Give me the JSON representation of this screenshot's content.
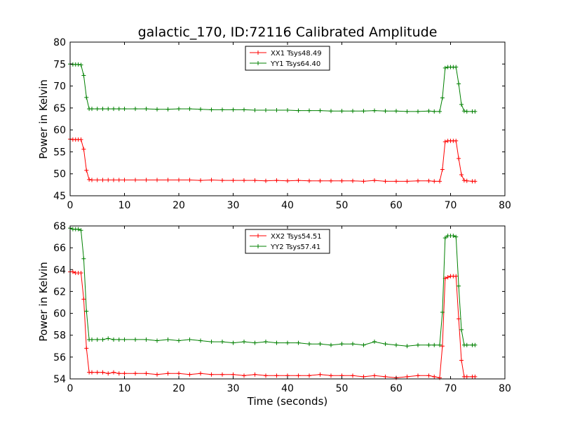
{
  "chart_data": [
    {
      "type": "line",
      "title": "galactic_170, ID:72116 Calibrated Amplitude",
      "xlabel": "",
      "ylabel": "Power in Kelvin",
      "xlim": [
        0,
        80
      ],
      "ylim": [
        45,
        80
      ],
      "xticks": [
        0,
        10,
        20,
        30,
        40,
        50,
        60,
        70,
        80
      ],
      "yticks": [
        45,
        50,
        55,
        60,
        65,
        70,
        75,
        80
      ],
      "legend_position": "top-center",
      "series": [
        {
          "name": "XX1 Tsys48.49",
          "color": "#ff0000",
          "x": [
            0,
            0.5,
            1,
            1.5,
            2,
            2.5,
            3,
            3.5,
            4,
            5,
            6,
            7,
            8,
            9,
            10,
            12,
            14,
            16,
            18,
            20,
            22,
            24,
            26,
            28,
            30,
            32,
            34,
            36,
            38,
            40,
            42,
            44,
            46,
            48,
            50,
            52,
            54,
            56,
            58,
            60,
            62,
            64,
            66,
            67,
            68,
            68.5,
            69,
            69.5,
            70,
            70.5,
            71,
            71.5,
            72,
            72.5,
            73,
            74,
            74.5
          ],
          "y": [
            57.9,
            57.8,
            57.8,
            57.8,
            57.8,
            55.6,
            50.8,
            48.7,
            48.6,
            48.6,
            48.6,
            48.6,
            48.6,
            48.6,
            48.6,
            48.6,
            48.6,
            48.6,
            48.6,
            48.6,
            48.6,
            48.5,
            48.6,
            48.5,
            48.5,
            48.5,
            48.5,
            48.4,
            48.5,
            48.4,
            48.5,
            48.4,
            48.4,
            48.4,
            48.4,
            48.4,
            48.3,
            48.5,
            48.3,
            48.3,
            48.3,
            48.4,
            48.4,
            48.3,
            48.3,
            51.0,
            57.3,
            57.5,
            57.5,
            57.5,
            57.5,
            53.5,
            49.8,
            48.5,
            48.4,
            48.3,
            48.3
          ]
        },
        {
          "name": "YY1 Tsys64.40",
          "color": "#008000",
          "x": [
            0,
            0.5,
            1,
            1.5,
            2,
            2.5,
            3,
            3.5,
            4,
            5,
            6,
            7,
            8,
            9,
            10,
            12,
            14,
            16,
            18,
            20,
            22,
            24,
            26,
            28,
            30,
            32,
            34,
            36,
            38,
            40,
            42,
            44,
            46,
            48,
            50,
            52,
            54,
            56,
            58,
            60,
            62,
            64,
            66,
            67,
            68,
            68.5,
            69,
            69.5,
            70,
            70.5,
            71,
            71.5,
            72,
            72.5,
            73,
            74,
            74.5
          ],
          "y": [
            75.0,
            74.9,
            74.9,
            74.9,
            74.8,
            72.4,
            67.4,
            64.8,
            64.8,
            64.8,
            64.8,
            64.8,
            64.8,
            64.8,
            64.8,
            64.8,
            64.8,
            64.7,
            64.7,
            64.8,
            64.8,
            64.7,
            64.6,
            64.6,
            64.6,
            64.6,
            64.5,
            64.5,
            64.5,
            64.5,
            64.4,
            64.4,
            64.4,
            64.3,
            64.3,
            64.3,
            64.3,
            64.4,
            64.3,
            64.3,
            64.2,
            64.2,
            64.3,
            64.2,
            64.2,
            67.3,
            74.1,
            74.3,
            74.3,
            74.3,
            74.3,
            70.5,
            65.8,
            64.3,
            64.2,
            64.2,
            64.2
          ]
        }
      ]
    },
    {
      "type": "line",
      "title": "",
      "xlabel": "Time (seconds)",
      "ylabel": "Power in Kelvin",
      "xlim": [
        0,
        80
      ],
      "ylim": [
        54,
        68
      ],
      "xticks": [
        0,
        10,
        20,
        30,
        40,
        50,
        60,
        70,
        80
      ],
      "yticks": [
        54,
        56,
        58,
        60,
        62,
        64,
        66,
        68
      ],
      "legend_position": "top-center",
      "series": [
        {
          "name": "XX2 Tsys54.51",
          "color": "#ff0000",
          "x": [
            0,
            0.5,
            1,
            1.5,
            2,
            2.5,
            3,
            3.5,
            4,
            5,
            6,
            7,
            8,
            9,
            10,
            12,
            14,
            16,
            18,
            20,
            22,
            24,
            26,
            28,
            30,
            32,
            34,
            36,
            38,
            40,
            42,
            44,
            46,
            48,
            50,
            52,
            54,
            56,
            58,
            60,
            62,
            64,
            66,
            67,
            68,
            68.5,
            69,
            69.5,
            70,
            70.5,
            71,
            71.5,
            72,
            72.5,
            73,
            74,
            74.5
          ],
          "y": [
            63.8,
            63.8,
            63.7,
            63.7,
            63.7,
            61.3,
            56.8,
            54.6,
            54.6,
            54.6,
            54.6,
            54.5,
            54.6,
            54.5,
            54.5,
            54.5,
            54.5,
            54.4,
            54.5,
            54.5,
            54.4,
            54.5,
            54.4,
            54.4,
            54.4,
            54.3,
            54.4,
            54.3,
            54.3,
            54.3,
            54.3,
            54.3,
            54.4,
            54.3,
            54.3,
            54.3,
            54.2,
            54.3,
            54.2,
            54.1,
            54.2,
            54.3,
            54.3,
            54.2,
            54.1,
            57.0,
            63.2,
            63.3,
            63.4,
            63.4,
            63.4,
            59.5,
            55.7,
            54.2,
            54.2,
            54.2,
            54.2
          ]
        },
        {
          "name": "YY2 Tsys57.41",
          "color": "#008000",
          "x": [
            0,
            0.5,
            1,
            1.5,
            2,
            2.5,
            3,
            3.5,
            4,
            5,
            6,
            7,
            8,
            9,
            10,
            12,
            14,
            16,
            18,
            20,
            22,
            24,
            26,
            28,
            30,
            32,
            34,
            36,
            38,
            40,
            42,
            44,
            46,
            48,
            50,
            52,
            54,
            56,
            58,
            60,
            62,
            64,
            66,
            67,
            68,
            68.5,
            69,
            69.5,
            70,
            70.5,
            71,
            71.5,
            72,
            72.5,
            73,
            74,
            74.5
          ],
          "y": [
            67.8,
            67.7,
            67.7,
            67.7,
            67.6,
            65.0,
            60.2,
            57.6,
            57.6,
            57.6,
            57.6,
            57.7,
            57.6,
            57.6,
            57.6,
            57.6,
            57.6,
            57.5,
            57.6,
            57.5,
            57.6,
            57.5,
            57.4,
            57.4,
            57.3,
            57.4,
            57.3,
            57.4,
            57.3,
            57.3,
            57.3,
            57.2,
            57.2,
            57.1,
            57.2,
            57.2,
            57.1,
            57.4,
            57.2,
            57.1,
            57.0,
            57.1,
            57.1,
            57.1,
            57.1,
            60.1,
            66.9,
            67.1,
            67.1,
            67.1,
            67.0,
            62.5,
            58.5,
            57.1,
            57.1,
            57.1,
            57.1
          ]
        }
      ]
    }
  ]
}
